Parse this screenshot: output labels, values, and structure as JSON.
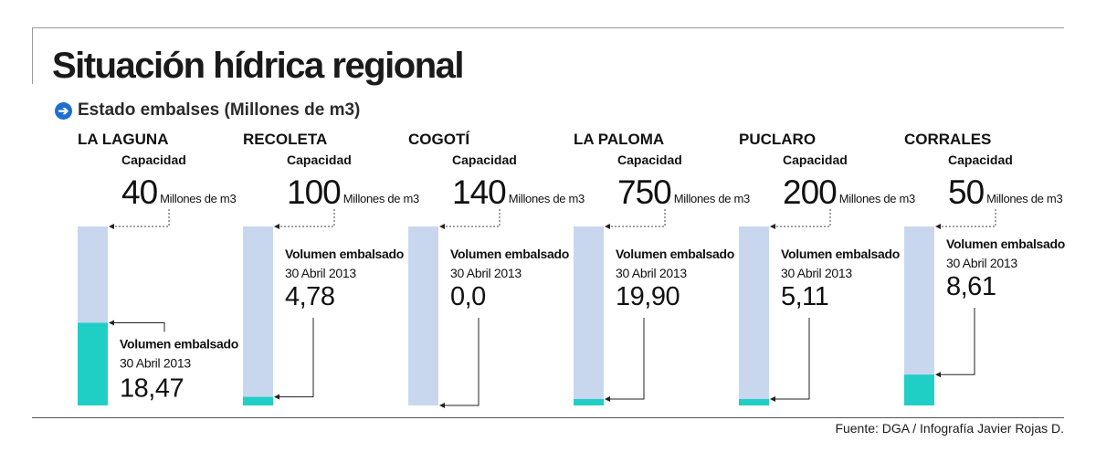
{
  "title": "Situación hídrica regional",
  "subtitle": "Estado embalses (Millones de m3)",
  "source": "Fuente: DGA / Infografía Javier Rojas D.",
  "labels": {
    "capacity": "Capacidad",
    "unit": "Millones de m3",
    "volume": "Volumen embalsado",
    "date": "30 Abril 2013"
  },
  "colors": {
    "capacity_bar": "#c9d7ee",
    "volume_bar": "#1fcfc6",
    "accent_icon": "#1e6fd0"
  },
  "chart_data": {
    "type": "bar",
    "categories": [
      "LA LAGUNA",
      "RECOLETA",
      "COGOTÍ",
      "LA PALOMA",
      "PUCLARO",
      "CORRALES"
    ],
    "series": [
      {
        "name": "Capacidad",
        "values": [
          40,
          100,
          140,
          750,
          200,
          50
        ]
      },
      {
        "name": "Volumen embalsado",
        "values": [
          18.47,
          4.78,
          0.0,
          19.9,
          5.11,
          8.61
        ]
      }
    ],
    "value_labels": {
      "capacity": [
        "40",
        "100",
        "140",
        "750",
        "200",
        "50"
      ],
      "volume": [
        "18,47",
        "4,78",
        "0,0",
        "19,90",
        "5,11",
        "8,61"
      ]
    },
    "scale": "each bar normalized to its own capacity",
    "grid": false
  }
}
